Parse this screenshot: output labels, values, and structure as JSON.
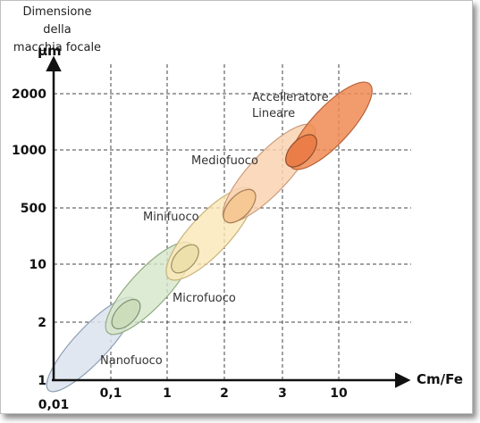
{
  "title_lines": [
    "Dimensione della",
    "macchia focale"
  ],
  "y_unit": "µm",
  "x_unit": "Cm/Fe",
  "y_ticks": [
    "2000",
    "1000",
    "500",
    "10",
    "2",
    "1"
  ],
  "x_ticks": [
    "0,01",
    "0,1",
    "1",
    "2",
    "3",
    "10"
  ],
  "regions": [
    {
      "name": "Nanofuoco",
      "color": "#dbe3ee"
    },
    {
      "name": "Microfuoco",
      "color": "#d6e6c9"
    },
    {
      "name": "Minifuoco",
      "color": "#fbe7b6"
    },
    {
      "name": "Mediofuoco",
      "color": "#f9d2b2"
    },
    {
      "name": "Accelleratore",
      "name2": "Lineare",
      "color": "#f08a52"
    }
  ]
}
